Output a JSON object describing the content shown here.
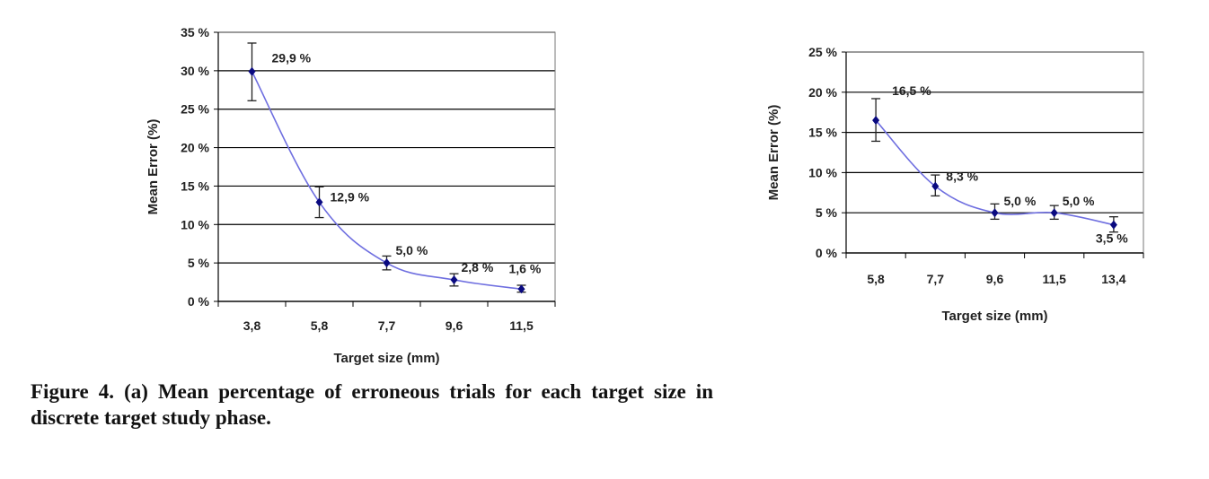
{
  "caption": "Figure 4. (a) Mean percentage of erroneous trials for each target size in discrete target study phase.",
  "colors": {
    "line": "#6f6fe0",
    "marker": "#0a0a80",
    "grid": "#000000",
    "error_bar": "#222222"
  },
  "chart_data": [
    {
      "type": "line",
      "title": "",
      "xlabel": "Target size (mm)",
      "ylabel": "Mean Error (%)",
      "categories": [
        "3,8",
        "5,8",
        "7,7",
        "9,6",
        "11,5"
      ],
      "values": [
        29.9,
        12.9,
        5.0,
        2.8,
        1.6
      ],
      "error_low": [
        26.1,
        10.9,
        4.1,
        2.0,
        1.2
      ],
      "error_high": [
        33.6,
        14.9,
        5.9,
        3.6,
        2.1
      ],
      "data_labels": [
        "29,9 %",
        "12,9 %",
        "5,0 %",
        "2,8 %",
        "1,6 %"
      ],
      "ylim": [
        0,
        35
      ],
      "yticks": [
        0,
        5,
        10,
        15,
        20,
        25,
        30,
        35
      ],
      "ytick_labels": [
        "0 %",
        "5 %",
        "10 %",
        "15 %",
        "20 %",
        "25 %",
        "30 %",
        "35 %"
      ],
      "grid": true,
      "legend": "none"
    },
    {
      "type": "line",
      "title": "",
      "xlabel": "Target size (mm)",
      "ylabel": "Mean Error (%)",
      "categories": [
        "5,8",
        "7,7",
        "9,6",
        "11,5",
        "13,4"
      ],
      "values": [
        16.5,
        8.3,
        5.0,
        5.0,
        3.5
      ],
      "error_low": [
        13.9,
        7.1,
        4.2,
        4.2,
        2.6
      ],
      "error_high": [
        19.2,
        9.7,
        6.1,
        5.9,
        4.5
      ],
      "data_labels": [
        "16,5 %",
        "8,3 %",
        "5,0 %",
        "5,0 %",
        "3,5 %"
      ],
      "ylim": [
        0,
        25
      ],
      "yticks": [
        0,
        5,
        10,
        15,
        20,
        25
      ],
      "ytick_labels": [
        "0 %",
        "5 %",
        "10 %",
        "15 %",
        "20 %",
        "25 %"
      ],
      "grid": true,
      "legend": "none"
    }
  ]
}
